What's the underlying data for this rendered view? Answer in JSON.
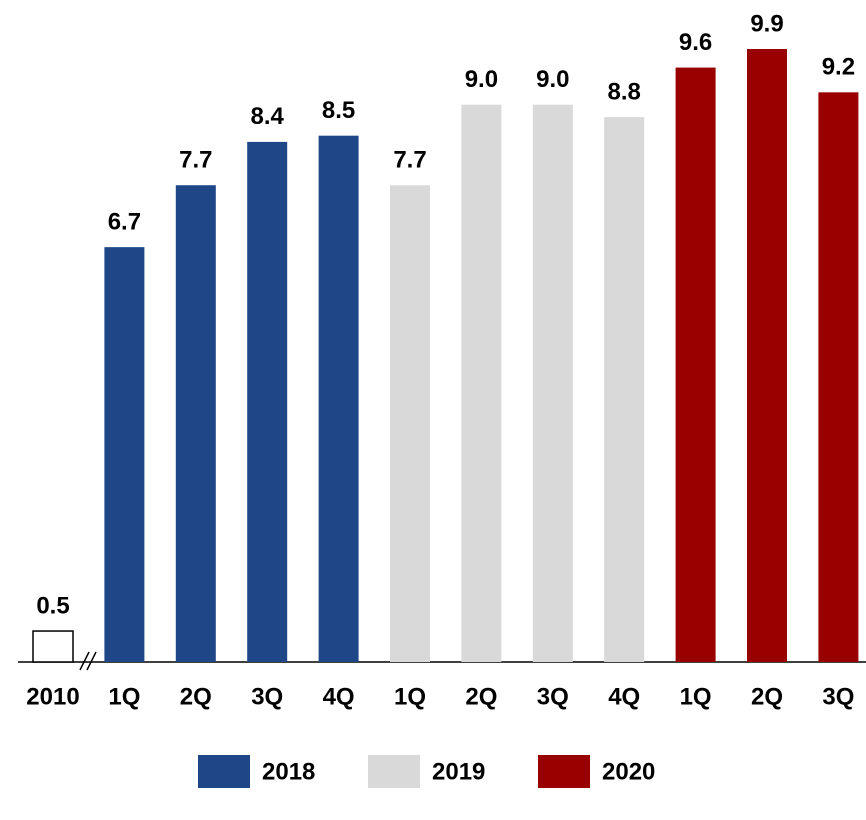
{
  "chart_data": {
    "type": "bar",
    "categories": [
      "2010",
      "1Q",
      "2Q",
      "3Q",
      "4Q",
      "1Q",
      "2Q",
      "3Q",
      "4Q",
      "1Q",
      "2Q",
      "3Q"
    ],
    "values": [
      0.5,
      6.7,
      7.7,
      8.4,
      8.5,
      7.7,
      9.0,
      9.0,
      8.8,
      9.6,
      9.9,
      9.2
    ],
    "value_labels": [
      "0.5",
      "6.7",
      "7.7",
      "8.4",
      "8.5",
      "7.7",
      "9.0",
      "9.0",
      "8.8",
      "9.6",
      "9.9",
      "9.2"
    ],
    "colors": [
      "#ffffff",
      "#1f4788",
      "#1f4788",
      "#1f4788",
      "#1f4788",
      "#d9d9d9",
      "#d9d9d9",
      "#d9d9d9",
      "#d9d9d9",
      "#990000",
      "#990000",
      "#990000"
    ],
    "legend": [
      {
        "name": "2018",
        "color": "#1f4788"
      },
      {
        "name": "2019",
        "color": "#d9d9d9"
      },
      {
        "name": "2020",
        "color": "#990000"
      }
    ]
  }
}
